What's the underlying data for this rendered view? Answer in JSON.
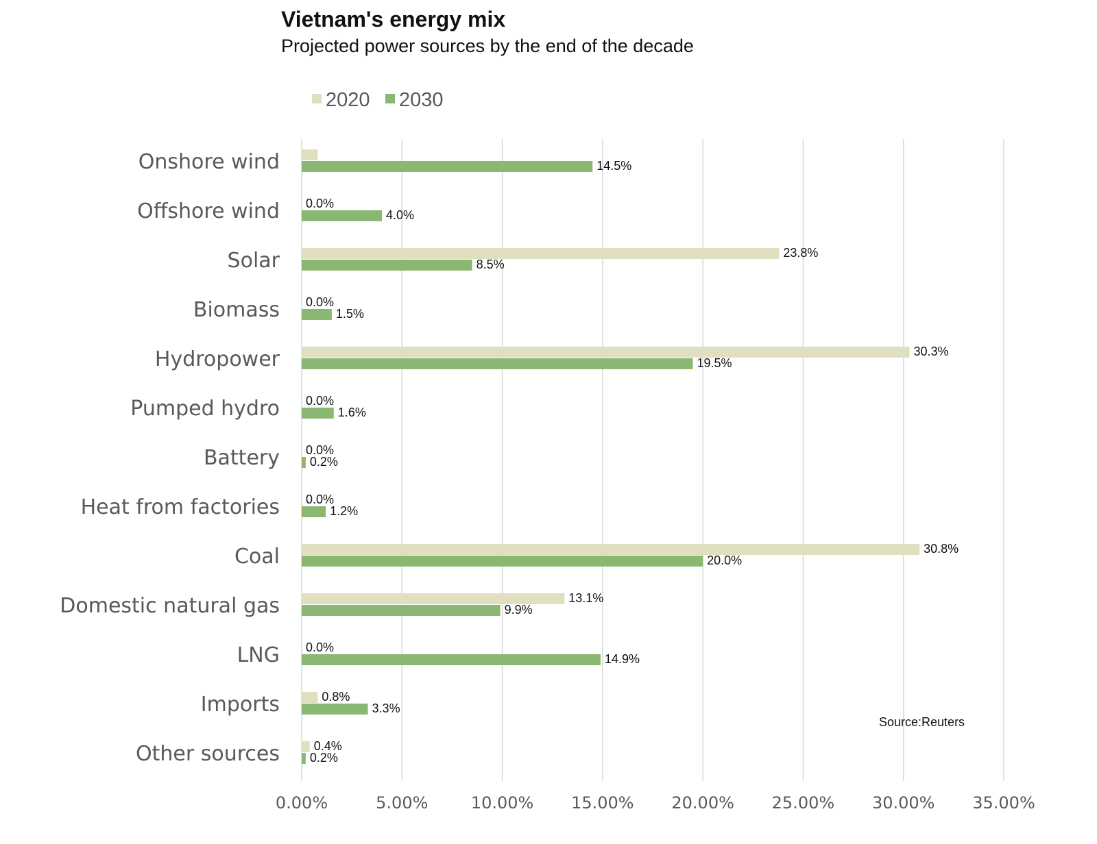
{
  "chart_data": {
    "type": "bar",
    "orientation": "horizontal",
    "title": "Vietnam's energy mix",
    "subtitle": "Projected power sources by the end of the decade",
    "source": "Source:Reuters",
    "categories": [
      "Onshore wind",
      "Offshore wind",
      "Solar",
      "Biomass",
      "Hydropower",
      "Pumped hydro",
      "Battery",
      "Heat from factories",
      "Coal",
      "Domestic natural gas",
      "LNG",
      "Imports",
      "Other sources"
    ],
    "series": [
      {
        "name": "2020",
        "color": "#e0dfc0",
        "values": [
          0.8,
          0.0,
          23.8,
          0.0,
          30.3,
          0.0,
          0.0,
          0.0,
          30.8,
          13.1,
          0.0,
          0.8,
          0.4
        ],
        "labels": [
          "",
          "0.0%",
          "23.8%",
          "0.0%",
          "30.3%",
          "0.0%",
          "0.0%",
          "0.0%",
          "30.8%",
          "13.1%",
          "0.0%",
          "0.8%",
          "0.4%"
        ]
      },
      {
        "name": "2030",
        "color": "#8ab873",
        "values": [
          14.5,
          4.0,
          8.5,
          1.5,
          19.5,
          1.6,
          0.2,
          1.2,
          20.0,
          9.9,
          14.9,
          3.3,
          0.2
        ],
        "labels": [
          "14.5%",
          "4.0%",
          "8.5%",
          "1.5%",
          "19.5%",
          "1.6%",
          "0.2%",
          "1.2%",
          "20.0%",
          "9.9%",
          "14.9%",
          "3.3%",
          "0.2%"
        ]
      }
    ],
    "xlim": [
      0,
      35
    ],
    "x_ticks": [
      "0.00%",
      "5.00%",
      "10.00%",
      "15.00%",
      "20.00%",
      "25.00%",
      "30.00%",
      "35.00%"
    ],
    "grid": "vertical",
    "legend": "top-left"
  }
}
